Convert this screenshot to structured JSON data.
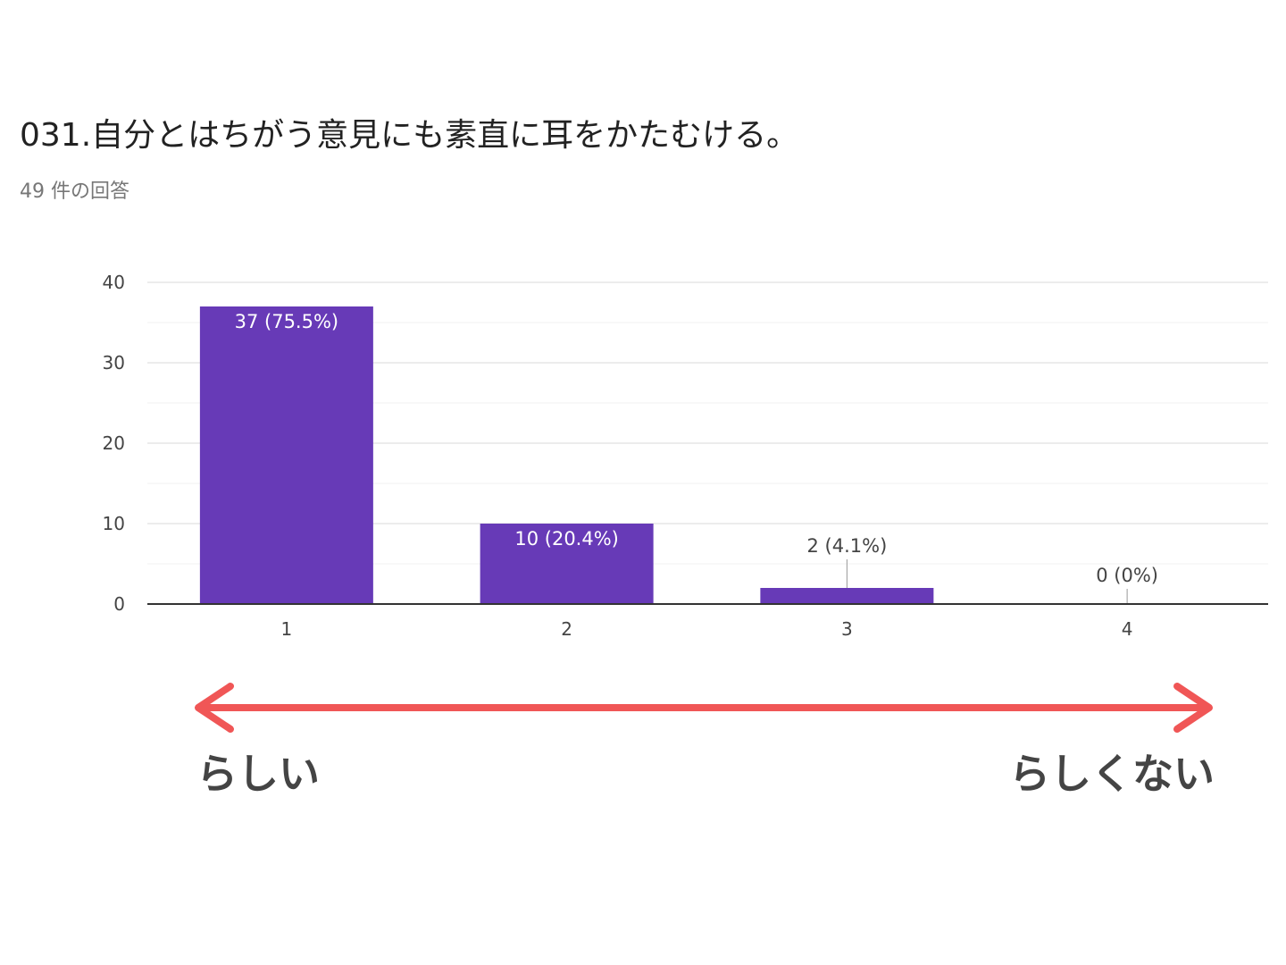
{
  "title": "031.自分とはちがう意見にも素直に耳をかたむける。",
  "subtitle": "49 件の回答",
  "chart_data": {
    "type": "bar",
    "categories": [
      "1",
      "2",
      "3",
      "4"
    ],
    "values": [
      37,
      10,
      2,
      0
    ],
    "data_labels": [
      "37 (75.5%)",
      "10 (20.4%)",
      "2 (4.1%)",
      "0 (0%)"
    ],
    "ylim": [
      0,
      40
    ],
    "yticks": [
      0,
      10,
      20,
      30,
      40
    ],
    "grid": true,
    "bar_color": "#673ab7",
    "xlabel": "",
    "ylabel": ""
  },
  "scale": {
    "left_label": "らしい",
    "right_label": "らしくない",
    "arrow_color": "#f05656"
  }
}
